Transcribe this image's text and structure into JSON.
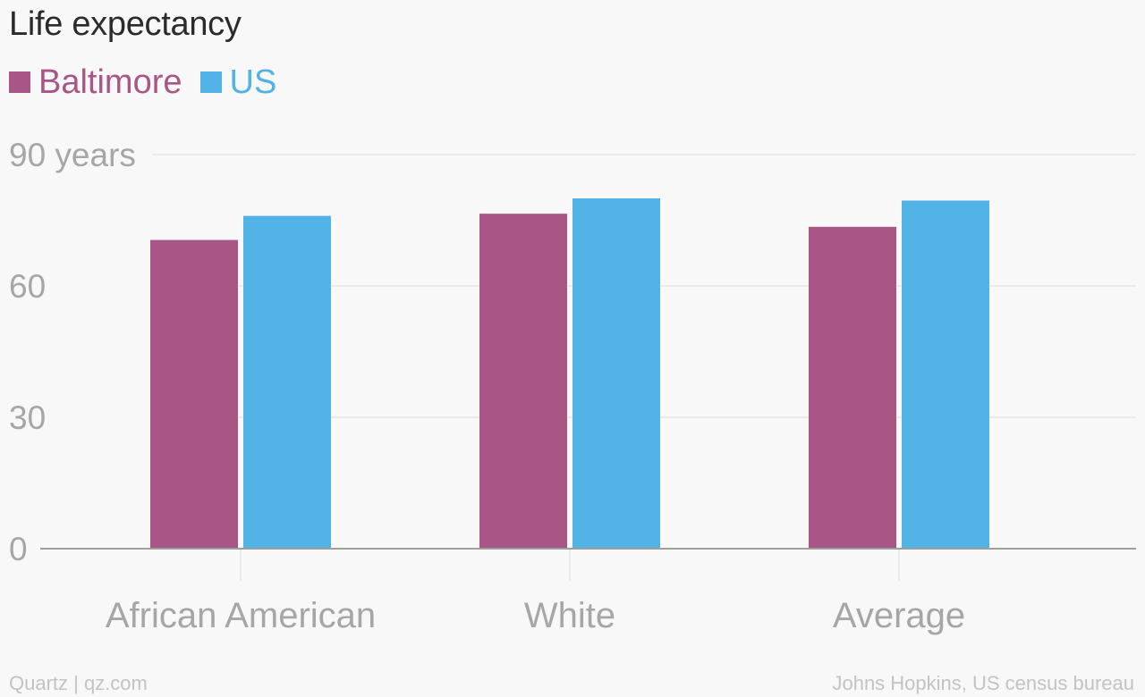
{
  "title": "Life expectancy",
  "legend": [
    {
      "label": "Baltimore",
      "color": "#a85686"
    },
    {
      "label": "US",
      "color": "#51b2e5"
    }
  ],
  "footer": {
    "left": "Quartz | qz.com",
    "right": "Johns Hopkins, US census bureau"
  },
  "chart_data": {
    "type": "bar",
    "title": "Life expectancy",
    "categories": [
      "African American",
      "White",
      "Average"
    ],
    "series": [
      {
        "name": "Baltimore",
        "color": "#a85686",
        "values": [
          70.5,
          76.5,
          73.5
        ]
      },
      {
        "name": "US",
        "color": "#51b2e5",
        "values": [
          76,
          80,
          79.5
        ]
      }
    ],
    "yticks": [
      0,
      30,
      60,
      90
    ],
    "ytick_labels": [
      "0",
      "30",
      "60",
      "90 years"
    ],
    "ylim": [
      0,
      90
    ],
    "grid": true,
    "legend_position": "top-left"
  }
}
